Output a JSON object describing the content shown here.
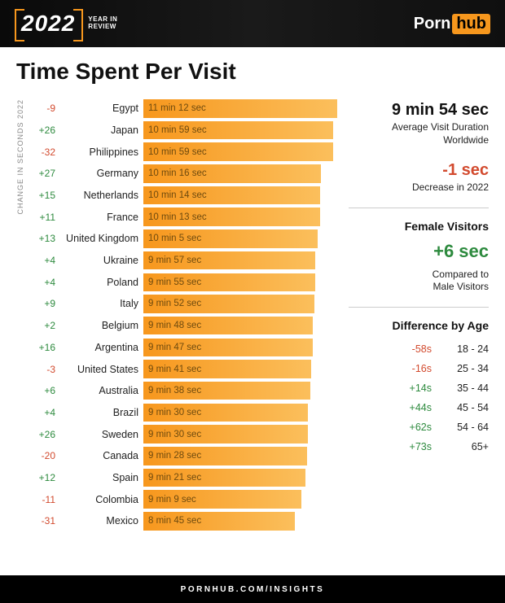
{
  "header": {
    "year": "2022",
    "subtitle_line1": "YEAR IN",
    "subtitle_line2": "REVIEW",
    "brand_a": "Porn",
    "brand_b": "hub"
  },
  "title": "Time Spent Per Visit",
  "axis_label": "CHANGE IN SECONDS 2022",
  "chart": {
    "type": "bar",
    "max_seconds": 672,
    "bar_gradient_start": "#f7971d",
    "bar_gradient_end": "#fbbf5c",
    "bar_label_color": "#6e4a0e",
    "pos_color": "#2d8a3e",
    "neg_color": "#d24a2e",
    "rows": [
      {
        "change": "-9",
        "positive": false,
        "country": "Egypt",
        "label": "11 min 12 sec",
        "seconds": 672
      },
      {
        "change": "+26",
        "positive": true,
        "country": "Japan",
        "label": "10 min 59 sec",
        "seconds": 659
      },
      {
        "change": "-32",
        "positive": false,
        "country": "Philippines",
        "label": "10 min 59 sec",
        "seconds": 659
      },
      {
        "change": "+27",
        "positive": true,
        "country": "Germany",
        "label": "10 min 16 sec",
        "seconds": 616
      },
      {
        "change": "+15",
        "positive": true,
        "country": "Netherlands",
        "label": "10 min 14 sec",
        "seconds": 614
      },
      {
        "change": "+11",
        "positive": true,
        "country": "France",
        "label": "10 min 13 sec",
        "seconds": 613
      },
      {
        "change": "+13",
        "positive": true,
        "country": "United Kingdom",
        "label": "10 min 5 sec",
        "seconds": 605
      },
      {
        "change": "+4",
        "positive": true,
        "country": "Ukraine",
        "label": "9 min 57 sec",
        "seconds": 597
      },
      {
        "change": "+4",
        "positive": true,
        "country": "Poland",
        "label": "9 min 55 sec",
        "seconds": 595
      },
      {
        "change": "+9",
        "positive": true,
        "country": "Italy",
        "label": "9 min 52 sec",
        "seconds": 592
      },
      {
        "change": "+2",
        "positive": true,
        "country": "Belgium",
        "label": "9 min 48 sec",
        "seconds": 588
      },
      {
        "change": "+16",
        "positive": true,
        "country": "Argentina",
        "label": "9 min 47 sec",
        "seconds": 587
      },
      {
        "change": "-3",
        "positive": false,
        "country": "United States",
        "label": "9 min 41 sec",
        "seconds": 581
      },
      {
        "change": "+6",
        "positive": true,
        "country": "Australia",
        "label": "9 min 38 sec",
        "seconds": 578
      },
      {
        "change": "+4",
        "positive": true,
        "country": "Brazil",
        "label": "9 min 30 sec",
        "seconds": 570
      },
      {
        "change": "+26",
        "positive": true,
        "country": "Sweden",
        "label": "9 min 30 sec",
        "seconds": 570
      },
      {
        "change": "-20",
        "positive": false,
        "country": "Canada",
        "label": "9 min 28 sec",
        "seconds": 568
      },
      {
        "change": "+12",
        "positive": true,
        "country": "Spain",
        "label": "9 min 21 sec",
        "seconds": 561
      },
      {
        "change": "-11",
        "positive": false,
        "country": "Colombia",
        "label": "9 min 9 sec",
        "seconds": 549
      },
      {
        "change": "-31",
        "positive": false,
        "country": "Mexico",
        "label": "8 min 45 sec",
        "seconds": 525
      }
    ]
  },
  "sidebar": {
    "avg_value": "9 min 54 sec",
    "avg_label_line1": "Average Visit Duration",
    "avg_label_line2": "Worldwide",
    "yoy_value": "-1 sec",
    "yoy_positive": false,
    "yoy_label": "Decrease in 2022",
    "female_title": "Female Visitors",
    "female_value": "+6 sec",
    "female_positive": true,
    "female_label_line1": "Compared to",
    "female_label_line2": "Male Visitors",
    "age_title": "Difference by Age",
    "age_rows": [
      {
        "delta": "-58s",
        "positive": false,
        "range": "18 - 24"
      },
      {
        "delta": "-16s",
        "positive": false,
        "range": "25 - 34"
      },
      {
        "delta": "+14s",
        "positive": true,
        "range": "35 - 44"
      },
      {
        "delta": "+44s",
        "positive": true,
        "range": "45 - 54"
      },
      {
        "delta": "+62s",
        "positive": true,
        "range": "54 - 64"
      },
      {
        "delta": "+73s",
        "positive": true,
        "range": "65+"
      }
    ]
  },
  "footer": "PORNHUB.COM/INSIGHTS"
}
